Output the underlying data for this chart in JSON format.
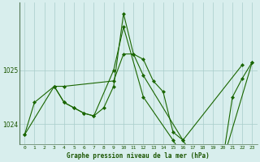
{
  "xlabel": "Graphe pression niveau de la mer (hPa)",
  "x_labels": [
    "0",
    "1",
    "2",
    "3",
    "4",
    "5",
    "6",
    "7",
    "8",
    "9",
    "10",
    "11",
    "12",
    "13",
    "14",
    "15",
    "16",
    "17",
    "18",
    "19",
    "20",
    "21",
    "22",
    "23"
  ],
  "s1_x": [
    0,
    1,
    3,
    4,
    9,
    10,
    11,
    12,
    16,
    22
  ],
  "s1_y": [
    1023.8,
    1024.4,
    1024.7,
    1024.7,
    1024.8,
    1025.3,
    1025.3,
    1024.9,
    1023.7,
    1025.1
  ],
  "s2_x": [
    3,
    4,
    5,
    6,
    7,
    9,
    10,
    12,
    15,
    16,
    17,
    19,
    20,
    23
  ],
  "s2_y": [
    1024.7,
    1024.4,
    1024.3,
    1024.2,
    1024.15,
    1025.0,
    1025.8,
    1024.5,
    1023.7,
    1023.4,
    1023.55,
    1023.35,
    1023.3,
    1025.15
  ],
  "s3_x": [
    0,
    3,
    4,
    5,
    6,
    7,
    8,
    9,
    10,
    11,
    12,
    13,
    14,
    15,
    16,
    17,
    18,
    19,
    20,
    21,
    22,
    23
  ],
  "s3_y": [
    1023.8,
    1024.7,
    1024.4,
    1024.3,
    1024.2,
    1024.15,
    1024.3,
    1024.7,
    1026.05,
    1025.3,
    1025.2,
    1024.8,
    1024.6,
    1023.85,
    1023.7,
    1023.4,
    1023.55,
    1023.35,
    1023.3,
    1024.5,
    1024.85,
    1025.15
  ],
  "bg_color": "#d8eeed",
  "grid_color": "#a8ccca",
  "line_color": "#1a6600",
  "marker_color": "#1a6600",
  "font_color": "#1a5500",
  "ylim": [
    1023.62,
    1026.25
  ],
  "yticks": [
    1024,
    1025
  ],
  "spine_color": "#557755"
}
